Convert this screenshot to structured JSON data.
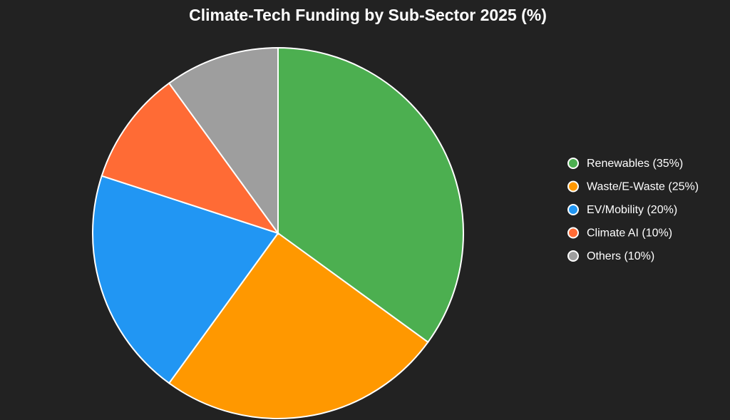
{
  "chart_data": {
    "type": "pie",
    "title": "Climate-Tech Funding by Sub-Sector 2025 (%)",
    "categories": [
      "Renewables (35%)",
      "Waste/E-Waste (25%)",
      "EV/Mobility (20%)",
      "Climate AI (10%)",
      "Others (10%)"
    ],
    "values": [
      35,
      25,
      20,
      10,
      10
    ],
    "colors": [
      "#4caf50",
      "#ff9800",
      "#2196f3",
      "#ff6b35",
      "#9e9e9e"
    ],
    "legend": "right"
  }
}
